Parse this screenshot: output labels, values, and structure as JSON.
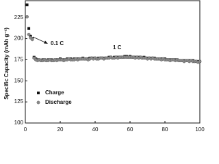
{
  "chart_data": {
    "type": "scatter",
    "y_label": "Specific Capacity (mAh g⁻¹)",
    "annotations": [
      "0.1 C",
      "1 C"
    ],
    "xlim": [
      0,
      100
    ],
    "xticks": [
      0,
      20,
      40,
      60,
      80,
      100
    ],
    "ylim": [
      100,
      245
    ],
    "yticks": [
      100,
      125,
      150,
      175,
      200,
      225
    ],
    "legend": "lower left",
    "x": [
      1,
      2,
      3,
      4,
      5,
      6,
      7,
      8,
      9,
      10,
      11,
      12,
      13,
      14,
      15,
      16,
      17,
      18,
      19,
      20,
      21,
      22,
      23,
      24,
      25,
      26,
      27,
      28,
      29,
      30,
      31,
      32,
      33,
      34,
      35,
      36,
      37,
      38,
      39,
      40,
      41,
      42,
      43,
      44,
      45,
      46,
      47,
      48,
      49,
      50,
      51,
      52,
      53,
      54,
      55,
      56,
      57,
      58,
      59,
      60,
      61,
      62,
      63,
      64,
      65,
      66,
      67,
      68,
      69,
      70,
      71,
      72,
      73,
      74,
      75,
      76,
      77,
      78,
      79,
      80,
      81,
      82,
      83,
      84,
      85,
      86,
      87,
      88,
      89,
      90,
      91,
      92,
      93,
      94,
      95,
      96,
      97,
      98,
      99,
      100
    ],
    "series": [
      {
        "name": "Charge",
        "color": "#111111",
        "values": [
          240,
          212,
          203,
          200,
          178,
          176,
          175,
          175,
          174,
          175,
          175,
          174,
          175,
          175,
          175,
          174,
          175,
          175,
          175,
          176,
          175,
          175,
          175,
          176,
          176,
          176,
          175,
          176,
          176,
          176,
          176,
          176,
          177,
          176,
          176,
          176,
          177,
          177,
          177,
          177,
          176,
          177,
          177,
          177,
          177,
          177,
          177,
          178,
          178,
          177,
          178,
          178,
          178,
          178,
          178,
          178,
          179,
          179,
          178,
          179,
          178,
          178,
          178,
          178,
          178,
          178,
          177,
          178,
          177,
          177,
          177,
          177,
          177,
          177,
          176,
          176,
          176,
          176,
          176,
          176,
          175,
          175,
          175,
          175,
          175,
          175,
          175,
          174,
          174,
          174,
          174,
          174,
          174,
          174,
          174,
          174,
          173,
          173,
          173,
          173
        ]
      },
      {
        "name": "Discharge",
        "color": "#8a8a8a",
        "values": [
          226,
          205,
          201,
          199,
          177,
          175,
          174,
          175,
          174,
          174,
          175,
          174,
          174,
          175,
          174,
          174,
          175,
          174,
          175,
          175,
          175,
          174,
          175,
          175,
          176,
          175,
          175,
          175,
          176,
          175,
          176,
          176,
          176,
          176,
          176,
          175,
          176,
          177,
          176,
          177,
          176,
          176,
          177,
          177,
          176,
          177,
          177,
          177,
          178,
          177,
          177,
          178,
          177,
          178,
          178,
          178,
          178,
          178,
          178,
          178,
          178,
          178,
          177,
          178,
          177,
          178,
          177,
          177,
          177,
          176,
          177,
          176,
          177,
          176,
          176,
          176,
          176,
          175,
          176,
          175,
          175,
          175,
          174,
          175,
          175,
          174,
          175,
          174,
          174,
          174,
          173,
          174,
          174,
          173,
          174,
          173,
          173,
          173,
          172,
          173
        ]
      }
    ]
  }
}
